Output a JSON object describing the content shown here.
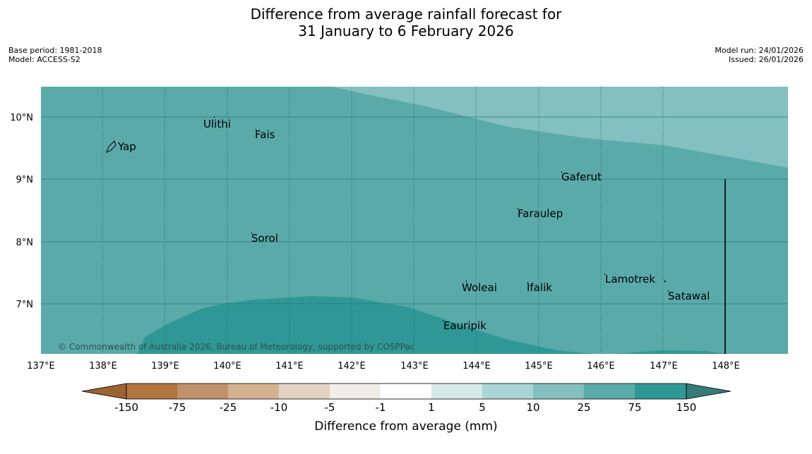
{
  "title": {
    "line1": "Difference from average rainfall forecast for",
    "line2": "31 January to 6 February 2026"
  },
  "meta": {
    "base_period": "Base period: 1981-2018",
    "model": "Model: ACCESS-S2",
    "model_run": "Model run: 24/01/2026",
    "issued": "Issued: 26/01/2026"
  },
  "map": {
    "lat_labels": [
      "10°N",
      "9°N",
      "8°N",
      "7°N"
    ],
    "lon_labels": [
      "137°E",
      "138°E",
      "139°E",
      "140°E",
      "141°E",
      "142°E",
      "143°E",
      "144°E",
      "145°E",
      "146°E",
      "147°E",
      "148°E"
    ],
    "places": [
      "Yap",
      "Ulithi",
      "Fais",
      "Gaferut",
      "Faraulep",
      "Sorol",
      "Woleai",
      "Ifalik",
      "Lamotrek",
      "Satawal",
      "Eauripik"
    ],
    "copyright": "© Commonwealth of Australia 2026, Bureau of Meteorology, supported by COSPPac",
    "colors": {
      "band_10_25": "#84c0bf",
      "band_25_75": "#5aaaaa",
      "band_75_150": "#2f9896"
    }
  },
  "colorbar": {
    "ticks": [
      "-150",
      "-75",
      "-25",
      "-10",
      "-5",
      "-1",
      "1",
      "5",
      "10",
      "25",
      "75",
      "150"
    ],
    "colors": [
      "#9b6330",
      "#b07540",
      "#c0916a",
      "#d4b290",
      "#e4d2c2",
      "#f1ede7",
      "#ffffff",
      "#d6e9e8",
      "#aad5d5",
      "#84c0bf",
      "#5aaaaa",
      "#2f9896",
      "#347b7a"
    ],
    "label": "Difference from average (mm)"
  }
}
